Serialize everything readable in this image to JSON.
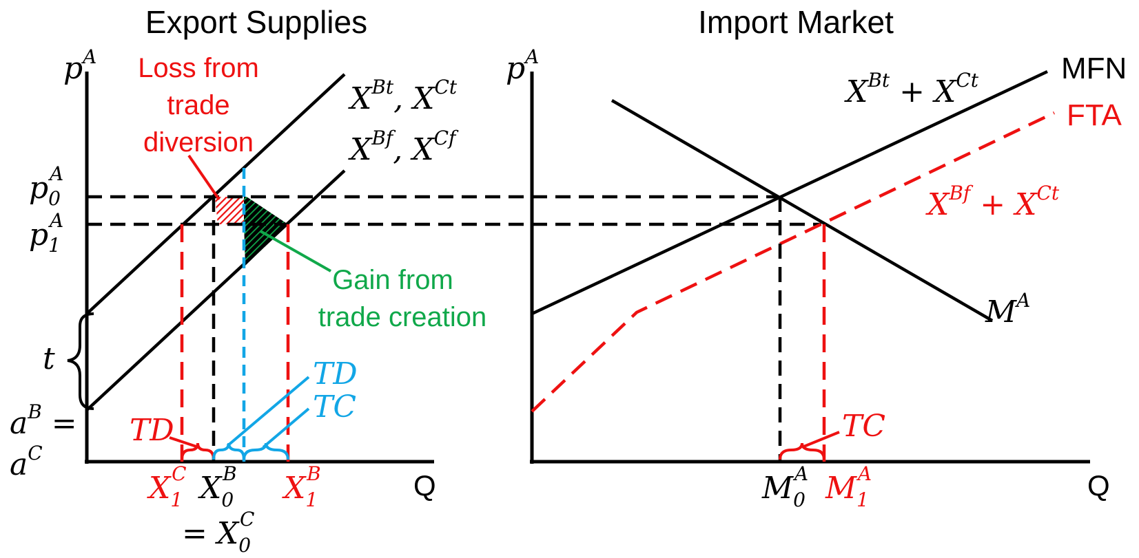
{
  "titles": {
    "left": "Export Supplies",
    "right": "Import Market"
  },
  "axes": {
    "left_y": {
      "base": "p",
      "sup": "A"
    },
    "right_y": {
      "base": "p",
      "sup": "A"
    },
    "left_x": "Q",
    "right_x": "Q"
  },
  "price_labels": {
    "p0": {
      "base": "p",
      "sub": "0",
      "sup": "A"
    },
    "p1": {
      "base": "p",
      "sub": "1",
      "sup": "A"
    }
  },
  "intercept_labels": {
    "t": "t",
    "aB_eq": {
      "base": "a",
      "sup": "B",
      "tail": " ="
    },
    "aC": {
      "base": "a",
      "sup": "C"
    }
  },
  "curve_labels": {
    "tariff_supplies": {
      "a": "X",
      "a_sup": "Bt",
      "sep": ", ",
      "b": "X",
      "b_sup": "Ct"
    },
    "fta_supplies": {
      "a": "X",
      "a_sup": "Bf",
      "sep": ", ",
      "b": "X",
      "b_sup": "Cf"
    },
    "mfn_sum": {
      "a": "X",
      "a_sup": "Bt",
      "sep": " + ",
      "b": "X",
      "b_sup": "Ct"
    },
    "fta_sum": {
      "a": "X",
      "a_sup": "Bf",
      "sep": " + ",
      "b": "X",
      "b_sup": "Ct"
    },
    "mfn": "MFN",
    "fta": "FTA",
    "import_demand": {
      "base": "M",
      "sup": "A"
    }
  },
  "annotations": {
    "loss_line1": "Loss from",
    "loss_line2": "trade",
    "loss_line3": "diversion",
    "gain_line1": "Gain from",
    "gain_line2": "trade creation",
    "td_left": "TD",
    "td_blue": "TD",
    "tc_blue": "TC",
    "tc_right": "TC"
  },
  "quantity_labels": {
    "x1c": {
      "base": "X",
      "sub": "1",
      "sup": "C"
    },
    "x0b": {
      "base": "X",
      "sub": "0",
      "sup": "B"
    },
    "x1b": {
      "base": "X",
      "sub": "1",
      "sup": "B"
    },
    "eq_x0c": {
      "pre": "= ",
      "base": "X",
      "sub": "0",
      "sup": "C"
    },
    "m0a": {
      "base": "M",
      "sub": "0",
      "sup": "A"
    },
    "m1a": {
      "base": "M",
      "sub": "1",
      "sup": "A"
    }
  },
  "colors": {
    "black": "#000000",
    "red": "#ee1111",
    "green": "#10a84a",
    "blue": "#12a6e6"
  }
}
